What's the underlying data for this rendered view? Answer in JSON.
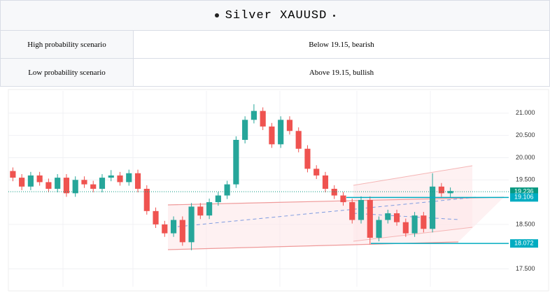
{
  "header": {
    "title": "Silver XAUUSD"
  },
  "table": {
    "rows": [
      [
        "High probability scenario",
        "Below 19.15, bearish"
      ],
      [
        "Low probability scenario",
        "Above 19.15, bullish"
      ]
    ]
  },
  "chart_data": {
    "type": "candlestick",
    "up_color": "#26a69a",
    "down_color": "#ef5350",
    "open": [
      19.7,
      19.55,
      19.35,
      19.6,
      19.45,
      19.3,
      19.55,
      19.2,
      19.5,
      19.4,
      19.3,
      19.55,
      19.6,
      19.45,
      19.65,
      19.3,
      18.8,
      18.5,
      18.3,
      18.6,
      18.1,
      18.9,
      18.7,
      19.0,
      19.15,
      19.4,
      20.4,
      20.85,
      21.05,
      20.7,
      20.3,
      20.85,
      20.6,
      20.2,
      19.75,
      19.6,
      19.3,
      19.15,
      19.0,
      18.6,
      19.05,
      18.2,
      18.6,
      18.75,
      18.55,
      18.3,
      18.7,
      18.4,
      19.35,
      19.2
    ],
    "high": [
      19.78,
      19.63,
      19.68,
      19.68,
      19.53,
      19.63,
      19.63,
      19.58,
      19.58,
      19.48,
      19.63,
      19.72,
      19.68,
      19.73,
      19.73,
      19.38,
      18.88,
      18.58,
      18.68,
      18.68,
      18.98,
      18.98,
      19.08,
      19.23,
      19.48,
      20.48,
      20.93,
      21.2,
      21.13,
      20.78,
      20.93,
      20.93,
      20.68,
      20.28,
      19.83,
      19.68,
      19.38,
      19.23,
      19.08,
      19.13,
      19.13,
      18.68,
      18.83,
      18.83,
      18.63,
      18.78,
      18.78,
      19.65,
      19.43,
      19.33
    ],
    "low": [
      19.47,
      19.27,
      19.27,
      19.37,
      19.22,
      19.22,
      19.12,
      19.12,
      19.32,
      19.22,
      19.22,
      19.47,
      19.37,
      19.37,
      19.22,
      18.72,
      18.42,
      18.22,
      18.22,
      18.02,
      17.92,
      18.62,
      18.62,
      18.92,
      19.07,
      19.32,
      20.32,
      20.77,
      20.62,
      20.22,
      20.22,
      20.52,
      20.12,
      19.67,
      19.52,
      19.22,
      19.07,
      18.92,
      18.52,
      18.52,
      18.05,
      18.12,
      18.52,
      18.47,
      18.22,
      18.22,
      18.32,
      18.32,
      19.12,
      19.12
    ],
    "close": [
      19.55,
      19.35,
      19.6,
      19.45,
      19.3,
      19.55,
      19.2,
      19.5,
      19.4,
      19.3,
      19.55,
      19.6,
      19.45,
      19.65,
      19.3,
      18.8,
      18.5,
      18.3,
      18.6,
      18.1,
      18.9,
      18.7,
      19.0,
      19.15,
      19.4,
      20.4,
      20.85,
      21.05,
      20.7,
      20.3,
      20.85,
      20.6,
      20.2,
      19.75,
      19.6,
      19.3,
      19.15,
      19.0,
      18.6,
      19.05,
      18.2,
      18.6,
      18.75,
      18.55,
      18.3,
      18.7,
      18.4,
      19.35,
      19.2,
      19.25
    ],
    "ylim": [
      17.1,
      21.5
    ],
    "yticks": [
      {
        "value": 17.5,
        "label": "17.500"
      },
      {
        "value": 18.5,
        "label": "18.500"
      },
      {
        "value": 19.5,
        "label": "19.500"
      },
      {
        "value": 20,
        "label": "20.000"
      },
      {
        "value": 20.5,
        "label": "20.500"
      },
      {
        "value": 21,
        "label": "21.000"
      }
    ],
    "levels": [
      {
        "value": 19.236,
        "color": "#089981"
      },
      {
        "value": 19.106,
        "color": "#00acc1"
      },
      {
        "value": 18.072,
        "color": "#00acc1"
      }
    ],
    "grid": true
  }
}
